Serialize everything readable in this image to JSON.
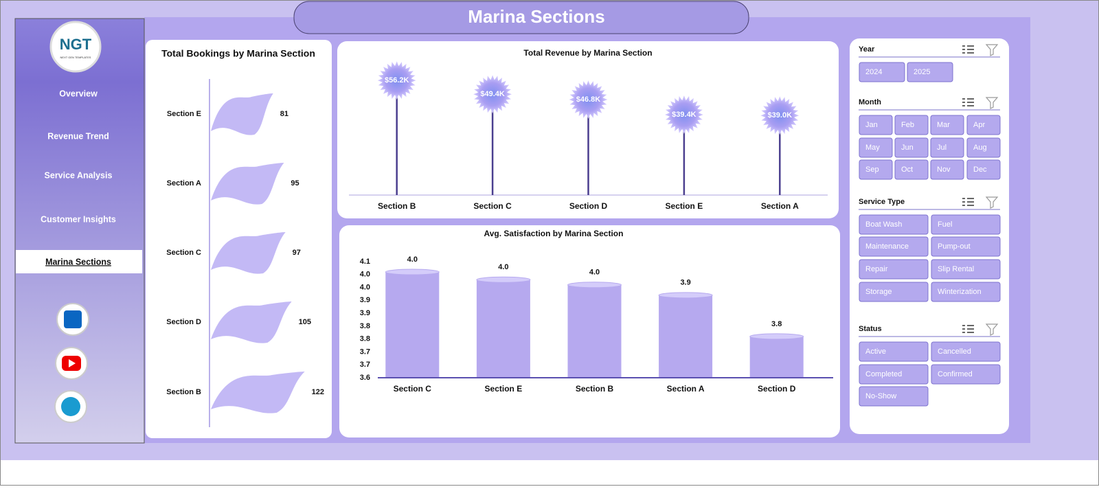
{
  "header": {
    "title": "Marina Sections"
  },
  "logo": {
    "text": "NGT",
    "tagline": "NEXT GEN TEMPLATES"
  },
  "nav": [
    "Overview",
    "Revenue Trend",
    "Service Analysis",
    "Customer Insights",
    "Marina Sections"
  ],
  "active_nav": 4,
  "chart_data": [
    {
      "type": "flag",
      "title": "Total Bookings by Marina Section",
      "categories": [
        "Section E",
        "Section A",
        "Section C",
        "Section D",
        "Section B"
      ],
      "values": [
        81,
        95,
        97,
        105,
        122
      ],
      "color": "#c3b9f5"
    },
    {
      "type": "lollipop",
      "title": "Total Revenue by Marina Section",
      "categories": [
        "Section B",
        "Section C",
        "Section D",
        "Section E",
        "Section A"
      ],
      "values": [
        56200,
        49400,
        46800,
        39400,
        39000
      ],
      "value_labels": [
        "$56.2K",
        "$49.4K",
        "$46.8K",
        "$39.4K",
        "$39.0K"
      ],
      "color": "#4b3f8f"
    },
    {
      "type": "cylinder",
      "title": "Avg. Satisfaction by Marina Section",
      "categories": [
        "Section C",
        "Section E",
        "Section B",
        "Section A",
        "Section D"
      ],
      "values": [
        4.01,
        3.98,
        3.96,
        3.92,
        3.76
      ],
      "value_labels": [
        "4.0",
        "4.0",
        "4.0",
        "3.9",
        "3.8"
      ],
      "color": "#b6a9ef",
      "ylim": [
        3.6,
        4.05
      ],
      "yticks": [
        3.6,
        {
          "value": 3.65,
          "label": "3.7"
        },
        3.7,
        {
          "value": 3.75,
          "label": "3.8"
        },
        3.8,
        {
          "value": 3.85,
          "label": "3.9"
        },
        3.9,
        {
          "value": 3.95,
          "label": "4.0"
        },
        {
          "value": 4.0,
          "label": "4.0"
        },
        {
          "value": 4.05,
          "label": "4.1"
        }
      ]
    }
  ],
  "slicers": [
    {
      "title": "Year",
      "items": [
        "2024",
        "2025"
      ]
    },
    {
      "title": "Month",
      "items": [
        "Jan",
        "Feb",
        "Mar",
        "Apr",
        "May",
        "Jun",
        "Jul",
        "Aug",
        "Sep",
        "Oct",
        "Nov",
        "Dec"
      ]
    },
    {
      "title": "Service Type",
      "items": [
        "Boat Wash",
        "Fuel",
        "Maintenance",
        "Pump-out",
        "Repair",
        "Slip Rental",
        "Storage",
        "Winterization"
      ]
    },
    {
      "title": "Status",
      "items": [
        "Active",
        "Cancelled",
        "Completed",
        "Confirmed",
        "No-Show"
      ]
    }
  ]
}
